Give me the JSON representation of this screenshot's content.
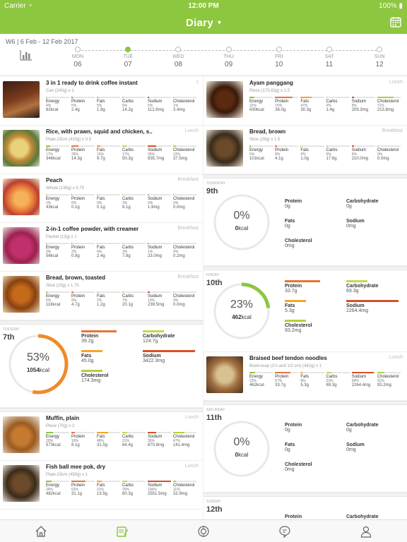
{
  "status": {
    "carrier": "Carrier",
    "time": "12:00 PM",
    "battery": "100%"
  },
  "nav": {
    "title": "Diary",
    "dropdown_icon": "chevron-down-icon",
    "calendar_icon": "calendar-icon"
  },
  "week": {
    "range": "W6 | 6 Feb - 12 Feb 2017",
    "days": [
      {
        "name": "MON",
        "num": "06"
      },
      {
        "name": "TUE",
        "num": "07",
        "active": true
      },
      {
        "name": "WED",
        "num": "08"
      },
      {
        "name": "THU",
        "num": "09"
      },
      {
        "name": "FRI",
        "num": "10"
      },
      {
        "name": "SAT",
        "num": "11"
      },
      {
        "name": "SUN",
        "num": "12"
      }
    ]
  },
  "nutrient_labels": [
    "Energy",
    "Protein",
    "Fats",
    "Carbs",
    "Sodium",
    "Cholesterol"
  ],
  "colors": {
    "accent": "#8dc63f",
    "energy": "#8dc63f",
    "protein": "#e8733c",
    "fats": "#f5a623",
    "carbs": "#c7d64f",
    "sodium": "#d64f2a",
    "cholesterol": "#b5cf3a",
    "ring": "#f08a2a"
  },
  "left_foods": [
    {
      "name": "3 in 1 ready to drink coffee instant",
      "meal": "1",
      "portion": "Can (240g) x 1",
      "pct": [
        "4%",
        "5%",
        "5%",
        "5%",
        "5%",
        "1%"
      ],
      "vals": [
        "82kcal",
        "2.4g",
        "1.9g",
        "14.2g",
        "112.8mg",
        "3.4mg"
      ]
    },
    {
      "name": "Rice, with prawn, squid and chicken, s..",
      "meal": "Lunch",
      "portion": "Plate-23cm (410g) x 0.5",
      "pct": [
        "17%",
        "29%",
        "15%",
        "17%",
        "35%",
        "12%"
      ],
      "vals": [
        "346kcal",
        "14.3g",
        "9.7g",
        "50.3g",
        "835.7mg",
        "37.5mg"
      ]
    },
    {
      "name": "Peach",
      "meal": "Breakfast",
      "portion": "Whole (138g) x 0.75",
      "pct": [
        "2%",
        "0%",
        "0%",
        "3%",
        "0%",
        "0%"
      ],
      "vals": [
        "43kcal",
        "0.1g",
        "0.1g",
        "8.1g",
        "1.9mg",
        "0.0mg"
      ]
    },
    {
      "name": "2-in-1 coffee powder, with creamer",
      "meal": "Breakfast",
      "portion": "Packet (12g) x 1",
      "pct": [
        "3%",
        "2%",
        "4%",
        "3%",
        "1%",
        "0%"
      ],
      "vals": [
        "56kcal",
        "0.8g",
        "2.4g",
        "7.8g",
        "23.0mg",
        "0.2mg"
      ]
    },
    {
      "name": "Bread, brown, toasted",
      "meal": "Breakfast",
      "portion": "Slice (23g) x 1.75",
      "pct": [
        "6%",
        "9%",
        "2%",
        "7%",
        "10%",
        "0%"
      ],
      "vals": [
        "116kcal",
        "4.7g",
        "1.2g",
        "20.1g",
        "239.5mg",
        "0.0mg"
      ]
    }
  ],
  "tue_summary": {
    "dayname": "TUESDAY",
    "daynum": "7th",
    "percent": "53%",
    "percent_value": 53,
    "kcal": "1054",
    "kcal_unit": "kcal",
    "protein": {
      "label": "Protein",
      "value": "39.2g"
    },
    "carbs": {
      "label": "Carbohydrate",
      "value": "124.7g"
    },
    "fats": {
      "label": "Fats",
      "value": "45.0g"
    },
    "sodium": {
      "label": "Sodium",
      "value": "3422.3mg"
    },
    "chol": {
      "label": "Cholesterol",
      "value": "174.3mg"
    }
  },
  "left_foods2": [
    {
      "name": "Muffin, plain",
      "meal": "Lunch",
      "portion": "Piece (70g) x 2",
      "pct": [
        "29%",
        "16%",
        "48%",
        "21%",
        "36%",
        "47%"
      ],
      "vals": [
        "573kcal",
        "8.1g",
        "31.5g",
        "64.4g",
        "870.8mg",
        "141.4mg"
      ]
    },
    {
      "name": "Fish ball mee pok, dry",
      "meal": "Lunch",
      "portion": "Plate-23cm (450g) x 1",
      "pct": [
        "24%",
        "62%",
        "21%",
        "20%",
        "106%",
        "11%"
      ],
      "vals": [
        "482kcal",
        "31.1g",
        "13.5g",
        "60.3g",
        "2551.5mg",
        "32.9mg"
      ]
    }
  ],
  "right_foods": [
    {
      "name": "Ayam panggang",
      "meal": "Lunch",
      "portion": "Piece (170.82g) x 1.5",
      "pct": [
        "22%",
        "76%",
        "47%",
        "0%",
        "9%",
        "71%"
      ],
      "vals": [
        "430kcal",
        "38.0g",
        "30.3g",
        "1.4g",
        "209.3mg",
        "213.8mg"
      ]
    },
    {
      "name": "Bread, brown",
      "meal": "Breakfast",
      "portion": "Slice (28g) x 1.5",
      "pct": [
        "5%",
        "8%",
        "2%",
        "6%",
        "9%",
        "0%"
      ],
      "vals": [
        "101kcal",
        "4.1g",
        "1.0g",
        "17.6g",
        "210.0mg",
        "0.0mg"
      ]
    }
  ],
  "thu_summary": {
    "dayname": "THURSDAY",
    "daynum": "9th",
    "percent": "0%",
    "percent_value": 0,
    "kcal": "0",
    "kcal_unit": "kcal",
    "protein": {
      "label": "Protein",
      "value": "0g"
    },
    "carbs": {
      "label": "Carbohydrate",
      "value": "0g"
    },
    "fats": {
      "label": "Fats",
      "value": "0g"
    },
    "sodium": {
      "label": "Sodium",
      "value": "0mg"
    },
    "chol": {
      "label": "Cholesterol",
      "value": "0mg"
    }
  },
  "fri_summary": {
    "dayname": "FRIDAY",
    "daynum": "10th",
    "percent": "23%",
    "percent_value": 23,
    "kcal": "462",
    "kcal_unit": "kcal",
    "protein": {
      "label": "Protein",
      "value": "33.7g"
    },
    "carbs": {
      "label": "Carbohydrate",
      "value": "69.3g"
    },
    "fats": {
      "label": "Fats",
      "value": "5.3g"
    },
    "sodium": {
      "label": "Sodium",
      "value": "2264.4mg"
    },
    "chol": {
      "label": "Cholesterol",
      "value": "93.2mg"
    }
  },
  "right_foods2": [
    {
      "name": "Braised beef tendon noodles",
      "meal": "Lunch",
      "portion": "Bowl-soup (1½ and 1/2 cm) (442g) x 1",
      "pct": [
        "23%",
        "67%",
        "8%",
        "23%",
        "94%",
        "31%"
      ],
      "vals": [
        "462kcal",
        "33.7g",
        "5.3g",
        "69.3g",
        "2264.4mg",
        "93.2mg"
      ]
    }
  ],
  "sat_summary": {
    "dayname": "SATURDAY",
    "daynum": "11th",
    "percent": "0%",
    "percent_value": 0,
    "kcal": "0",
    "kcal_unit": "kcal",
    "protein": {
      "label": "Protein",
      "value": "0g"
    },
    "carbs": {
      "label": "Carbohydrate",
      "value": "0g"
    },
    "fats": {
      "label": "Fats",
      "value": "0g"
    },
    "sodium": {
      "label": "Sodium",
      "value": "0mg"
    },
    "chol": {
      "label": "Cholesterol",
      "value": "0mg"
    }
  },
  "sun_summary": {
    "dayname": "SUNDAY",
    "daynum": "12th",
    "protein": {
      "label": "Protein"
    },
    "carbs": {
      "label": "Carbohydrate"
    }
  },
  "tabs": [
    {
      "icon": "home-icon"
    },
    {
      "icon": "diary-icon",
      "active": true
    },
    {
      "icon": "target-icon"
    },
    {
      "icon": "chat-icon"
    },
    {
      "icon": "profile-icon"
    }
  ]
}
